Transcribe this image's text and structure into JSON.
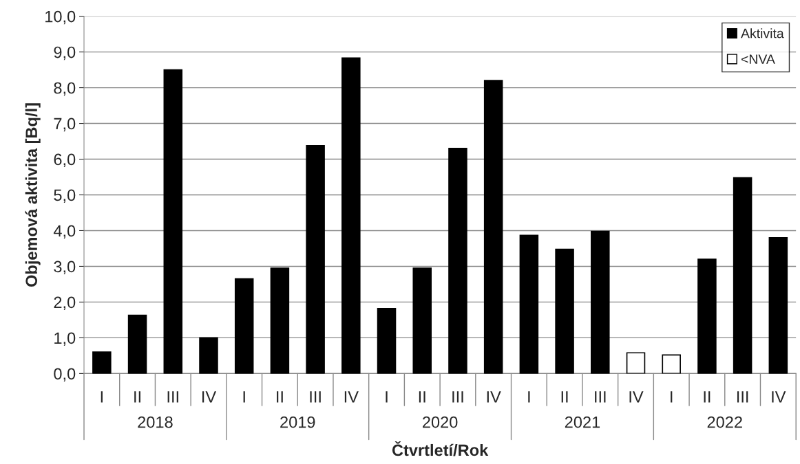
{
  "chart_data": {
    "type": "bar",
    "xlabel": "Čtvrtletí/Rok",
    "ylabel": "Objemová aktivita [Bq/l]",
    "categories": [
      "I",
      "II",
      "III",
      "IV",
      "I",
      "II",
      "III",
      "IV",
      "I",
      "II",
      "III",
      "IV",
      "I",
      "II",
      "III",
      "IV",
      "I",
      "II",
      "III",
      "IV"
    ],
    "series": [
      {
        "name": "Aktivita",
        "color": "#000000",
        "values": [
          0.6,
          1.63,
          8.5,
          1.0,
          2.65,
          2.95,
          6.38,
          8.83,
          1.82,
          2.95,
          6.3,
          8.2,
          3.87,
          3.48,
          3.98,
          null,
          null,
          3.2,
          5.48,
          3.8
        ]
      },
      {
        "name": "<NVA",
        "color": "#ffffff",
        "values": [
          null,
          null,
          null,
          null,
          null,
          null,
          null,
          null,
          null,
          null,
          null,
          null,
          null,
          null,
          null,
          0.58,
          0.52,
          null,
          null,
          null
        ]
      }
    ],
    "annotations": [
      "2018",
      "2019",
      "2020",
      "2021",
      "2022"
    ],
    "ylim": [
      0,
      10
    ],
    "yticks": [
      {
        "value": 0,
        "label": "0,0"
      },
      {
        "value": 1,
        "label": "1,0"
      },
      {
        "value": 2,
        "label": "2,0"
      },
      {
        "value": 3,
        "label": "3,0"
      },
      {
        "value": 4,
        "label": "4,0"
      },
      {
        "value": 5,
        "label": "5,0"
      },
      {
        "value": 6,
        "label": "6,0"
      },
      {
        "value": 7,
        "label": "7,0"
      },
      {
        "value": 8,
        "label": "8,0"
      },
      {
        "value": 9,
        "label": "9,0"
      },
      {
        "value": 10,
        "label": "10,0"
      }
    ],
    "grid": "y",
    "legend": "top right"
  }
}
